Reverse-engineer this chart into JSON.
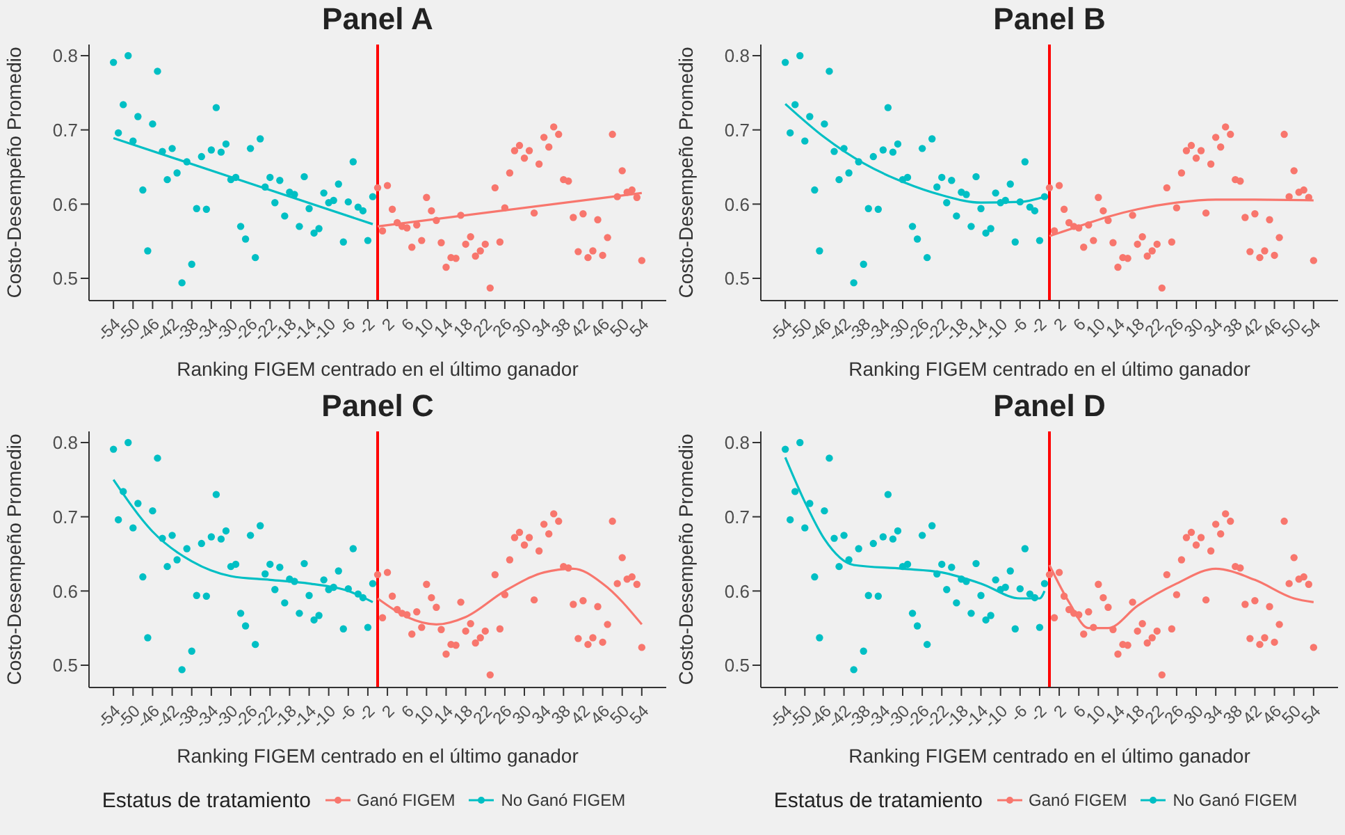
{
  "chart_data": [
    {
      "type": "scatter",
      "title": "Panel A",
      "xlabel": "Ranking FIGEM centrado en el último ganador",
      "ylabel": "Costo-Desempeño Promedio",
      "xlim": [
        -59,
        59
      ],
      "ylim": [
        0.47,
        0.815
      ],
      "xticks": [
        -54,
        -50,
        -46,
        -42,
        -38,
        -34,
        -30,
        -26,
        -22,
        -18,
        -14,
        -10,
        -6,
        -2,
        2,
        6,
        10,
        14,
        18,
        22,
        26,
        30,
        34,
        38,
        42,
        46,
        50,
        54
      ],
      "yticks": [
        0.5,
        0.6,
        0.7,
        0.8
      ],
      "grid": false,
      "legend": false,
      "marker": "circle",
      "ref_lines": [
        {
          "axis": "x",
          "value": 0,
          "color": "#ff0000"
        }
      ],
      "series": [
        {
          "color": "#f8766d",
          "x": [
            0,
            1,
            2,
            3,
            4,
            5,
            6,
            7,
            8,
            9,
            10,
            11,
            12,
            13,
            14,
            15,
            16,
            17,
            18,
            19,
            20,
            21,
            22,
            23,
            24,
            25,
            26,
            27,
            28,
            29,
            30,
            31,
            32,
            33,
            34,
            35,
            36,
            37,
            38,
            39,
            40,
            41,
            42,
            43,
            44,
            45,
            46,
            47,
            48,
            49,
            50,
            51,
            52,
            53,
            54
          ],
          "values": [
            0.622,
            0.564,
            0.625,
            0.593,
            0.575,
            0.57,
            0.568,
            0.542,
            0.572,
            0.551,
            0.609,
            0.591,
            0.578,
            0.548,
            0.515,
            0.528,
            0.527,
            0.585,
            0.546,
            0.556,
            0.53,
            0.537,
            0.546,
            0.487,
            0.622,
            0.549,
            0.595,
            0.642,
            0.672,
            0.679,
            0.662,
            0.672,
            0.588,
            0.654,
            0.69,
            0.677,
            0.704,
            0.694,
            0.633,
            0.631,
            0.582,
            0.536,
            0.587,
            0.528,
            0.537,
            0.579,
            0.531,
            0.555,
            0.694,
            0.61,
            0.645,
            0.616,
            0.619,
            0.609,
            0.524
          ]
        },
        {
          "color": "#00bfc4",
          "x": [
            -54,
            -53,
            -52,
            -51,
            -50,
            -49,
            -48,
            -47,
            -46,
            -45,
            -44,
            -43,
            -42,
            -41,
            -40,
            -39,
            -38,
            -37,
            -36,
            -35,
            -34,
            -33,
            -32,
            -31,
            -30,
            -29,
            -28,
            -27,
            -26,
            -25,
            -24,
            -23,
            -22,
            -21,
            -20,
            -19,
            -18,
            -17,
            -16,
            -15,
            -14,
            -13,
            -12,
            -11,
            -10,
            -9,
            -8,
            -7,
            -6,
            -5,
            -4,
            -3,
            -2,
            -1
          ],
          "values": [
            0.791,
            0.696,
            0.734,
            0.8,
            0.685,
            0.718,
            0.619,
            0.537,
            0.708,
            0.779,
            0.671,
            0.633,
            0.675,
            0.642,
            0.494,
            0.657,
            0.519,
            0.594,
            0.664,
            0.593,
            0.673,
            0.73,
            0.67,
            0.681,
            0.633,
            0.636,
            0.57,
            0.553,
            0.675,
            0.528,
            0.688,
            0.623,
            0.636,
            0.602,
            0.632,
            0.584,
            0.616,
            0.613,
            0.57,
            0.637,
            0.594,
            0.561,
            0.567,
            0.615,
            0.602,
            0.605,
            0.627,
            0.549,
            0.603,
            0.657,
            0.596,
            0.591,
            0.551,
            0.61
          ]
        },
        {
          "type": "line",
          "marker": "none",
          "color": "#f8766d",
          "x": [
            0,
            54
          ],
          "values": [
            0.57,
            0.615
          ]
        },
        {
          "type": "line",
          "marker": "none",
          "color": "#00bfc4",
          "x": [
            -54,
            -1
          ],
          "values": [
            0.689,
            0.573
          ]
        }
      ]
    },
    {
      "type": "scatter",
      "title": "Panel B",
      "xlabel": "Ranking FIGEM centrado en el último ganador",
      "ylabel": "Costo-Desempeño Promedio",
      "xlim": [
        -59,
        59
      ],
      "ylim": [
        0.47,
        0.815
      ],
      "xticks": [
        -54,
        -50,
        -46,
        -42,
        -38,
        -34,
        -30,
        -26,
        -22,
        -18,
        -14,
        -10,
        -6,
        -2,
        2,
        6,
        10,
        14,
        18,
        22,
        26,
        30,
        34,
        38,
        42,
        46,
        50,
        54
      ],
      "yticks": [
        0.5,
        0.6,
        0.7,
        0.8
      ],
      "grid": false,
      "legend": false,
      "marker": "circle",
      "ref_lines": [
        {
          "axis": "x",
          "value": 0,
          "color": "#ff0000"
        }
      ],
      "series": [
        {
          "color": "#f8766d",
          "x": [
            0,
            1,
            2,
            3,
            4,
            5,
            6,
            7,
            8,
            9,
            10,
            11,
            12,
            13,
            14,
            15,
            16,
            17,
            18,
            19,
            20,
            21,
            22,
            23,
            24,
            25,
            26,
            27,
            28,
            29,
            30,
            31,
            32,
            33,
            34,
            35,
            36,
            37,
            38,
            39,
            40,
            41,
            42,
            43,
            44,
            45,
            46,
            47,
            48,
            49,
            50,
            51,
            52,
            53,
            54
          ],
          "values": [
            0.622,
            0.564,
            0.625,
            0.593,
            0.575,
            0.57,
            0.568,
            0.542,
            0.572,
            0.551,
            0.609,
            0.591,
            0.578,
            0.548,
            0.515,
            0.528,
            0.527,
            0.585,
            0.546,
            0.556,
            0.53,
            0.537,
            0.546,
            0.487,
            0.622,
            0.549,
            0.595,
            0.642,
            0.672,
            0.679,
            0.662,
            0.672,
            0.588,
            0.654,
            0.69,
            0.677,
            0.704,
            0.694,
            0.633,
            0.631,
            0.582,
            0.536,
            0.587,
            0.528,
            0.537,
            0.579,
            0.531,
            0.555,
            0.694,
            0.61,
            0.645,
            0.616,
            0.619,
            0.609,
            0.524
          ]
        },
        {
          "color": "#00bfc4",
          "x": [
            -54,
            -53,
            -52,
            -51,
            -50,
            -49,
            -48,
            -47,
            -46,
            -45,
            -44,
            -43,
            -42,
            -41,
            -40,
            -39,
            -38,
            -37,
            -36,
            -35,
            -34,
            -33,
            -32,
            -31,
            -30,
            -29,
            -28,
            -27,
            -26,
            -25,
            -24,
            -23,
            -22,
            -21,
            -20,
            -19,
            -18,
            -17,
            -16,
            -15,
            -14,
            -13,
            -12,
            -11,
            -10,
            -9,
            -8,
            -7,
            -6,
            -5,
            -4,
            -3,
            -2,
            -1
          ],
          "values": [
            0.791,
            0.696,
            0.734,
            0.8,
            0.685,
            0.718,
            0.619,
            0.537,
            0.708,
            0.779,
            0.671,
            0.633,
            0.675,
            0.642,
            0.494,
            0.657,
            0.519,
            0.594,
            0.664,
            0.593,
            0.673,
            0.73,
            0.67,
            0.681,
            0.633,
            0.636,
            0.57,
            0.553,
            0.675,
            0.528,
            0.688,
            0.623,
            0.636,
            0.602,
            0.632,
            0.584,
            0.616,
            0.613,
            0.57,
            0.637,
            0.594,
            0.561,
            0.567,
            0.615,
            0.602,
            0.605,
            0.627,
            0.549,
            0.603,
            0.657,
            0.596,
            0.591,
            0.551,
            0.61
          ]
        },
        {
          "type": "line",
          "marker": "none",
          "color": "#f8766d",
          "x": [
            0,
            6,
            12,
            18,
            26,
            34,
            42,
            54
          ],
          "values": [
            0.557,
            0.57,
            0.583,
            0.593,
            0.602,
            0.606,
            0.606,
            0.605
          ]
        },
        {
          "type": "line",
          "marker": "none",
          "color": "#00bfc4",
          "x": [
            -54,
            -46,
            -38,
            -30,
            -22,
            -14,
            -6,
            -1
          ],
          "values": [
            0.735,
            0.69,
            0.655,
            0.63,
            0.612,
            0.602,
            0.603,
            0.61
          ]
        }
      ]
    },
    {
      "type": "scatter",
      "title": "Panel C",
      "xlabel": "Ranking FIGEM centrado en el último ganador",
      "ylabel": "Costo-Desempeño Promedio",
      "legend_title": "Estatus de tratamiento",
      "xlim": [
        -59,
        59
      ],
      "ylim": [
        0.47,
        0.815
      ],
      "xticks": [
        -54,
        -50,
        -46,
        -42,
        -38,
        -34,
        -30,
        -26,
        -22,
        -18,
        -14,
        -10,
        -6,
        -2,
        2,
        6,
        10,
        14,
        18,
        22,
        26,
        30,
        34,
        38,
        42,
        46,
        50,
        54
      ],
      "yticks": [
        0.5,
        0.6,
        0.7,
        0.8
      ],
      "grid": false,
      "legend": "bottom",
      "marker": "circle",
      "ref_lines": [
        {
          "axis": "x",
          "value": 0,
          "color": "#ff0000"
        }
      ],
      "series": [
        {
          "name": "Ganó FIGEM",
          "color": "#f8766d",
          "x": [
            0,
            1,
            2,
            3,
            4,
            5,
            6,
            7,
            8,
            9,
            10,
            11,
            12,
            13,
            14,
            15,
            16,
            17,
            18,
            19,
            20,
            21,
            22,
            23,
            24,
            25,
            26,
            27,
            28,
            29,
            30,
            31,
            32,
            33,
            34,
            35,
            36,
            37,
            38,
            39,
            40,
            41,
            42,
            43,
            44,
            45,
            46,
            47,
            48,
            49,
            50,
            51,
            52,
            53,
            54
          ],
          "values": [
            0.622,
            0.564,
            0.625,
            0.593,
            0.575,
            0.57,
            0.568,
            0.542,
            0.572,
            0.551,
            0.609,
            0.591,
            0.578,
            0.548,
            0.515,
            0.528,
            0.527,
            0.585,
            0.546,
            0.556,
            0.53,
            0.537,
            0.546,
            0.487,
            0.622,
            0.549,
            0.595,
            0.642,
            0.672,
            0.679,
            0.662,
            0.672,
            0.588,
            0.654,
            0.69,
            0.677,
            0.704,
            0.694,
            0.633,
            0.631,
            0.582,
            0.536,
            0.587,
            0.528,
            0.537,
            0.579,
            0.531,
            0.555,
            0.694,
            0.61,
            0.645,
            0.616,
            0.619,
            0.609,
            0.524
          ]
        },
        {
          "name": "No Ganó FIGEM",
          "color": "#00bfc4",
          "x": [
            -54,
            -53,
            -52,
            -51,
            -50,
            -49,
            -48,
            -47,
            -46,
            -45,
            -44,
            -43,
            -42,
            -41,
            -40,
            -39,
            -38,
            -37,
            -36,
            -35,
            -34,
            -33,
            -32,
            -31,
            -30,
            -29,
            -28,
            -27,
            -26,
            -25,
            -24,
            -23,
            -22,
            -21,
            -20,
            -19,
            -18,
            -17,
            -16,
            -15,
            -14,
            -13,
            -12,
            -11,
            -10,
            -9,
            -8,
            -7,
            -6,
            -5,
            -4,
            -3,
            -2,
            -1
          ],
          "values": [
            0.791,
            0.696,
            0.734,
            0.8,
            0.685,
            0.718,
            0.619,
            0.537,
            0.708,
            0.779,
            0.671,
            0.633,
            0.675,
            0.642,
            0.494,
            0.657,
            0.519,
            0.594,
            0.664,
            0.593,
            0.673,
            0.73,
            0.67,
            0.681,
            0.633,
            0.636,
            0.57,
            0.553,
            0.675,
            0.528,
            0.688,
            0.623,
            0.636,
            0.602,
            0.632,
            0.584,
            0.616,
            0.613,
            0.57,
            0.637,
            0.594,
            0.561,
            0.567,
            0.615,
            0.602,
            0.605,
            0.627,
            0.549,
            0.603,
            0.657,
            0.596,
            0.591,
            0.551,
            0.61
          ]
        },
        {
          "type": "line",
          "marker": "none",
          "color": "#f8766d",
          "x": [
            0,
            6,
            12,
            18,
            26,
            34,
            40,
            46,
            54
          ],
          "values": [
            0.59,
            0.565,
            0.555,
            0.565,
            0.6,
            0.625,
            0.63,
            0.61,
            0.555
          ]
        },
        {
          "type": "line",
          "marker": "none",
          "color": "#00bfc4",
          "x": [
            -54,
            -46,
            -38,
            -30,
            -22,
            -14,
            -6,
            -1
          ],
          "values": [
            0.75,
            0.68,
            0.64,
            0.62,
            0.615,
            0.61,
            0.6,
            0.585
          ]
        }
      ]
    },
    {
      "type": "scatter",
      "title": "Panel D",
      "xlabel": "Ranking FIGEM centrado en el último ganador",
      "ylabel": "Costo-Desempeño Promedio",
      "legend_title": "Estatus de tratamiento",
      "xlim": [
        -59,
        59
      ],
      "ylim": [
        0.47,
        0.815
      ],
      "xticks": [
        -54,
        -50,
        -46,
        -42,
        -38,
        -34,
        -30,
        -26,
        -22,
        -18,
        -14,
        -10,
        -6,
        -2,
        2,
        6,
        10,
        14,
        18,
        22,
        26,
        30,
        34,
        38,
        42,
        46,
        50,
        54
      ],
      "yticks": [
        0.5,
        0.6,
        0.7,
        0.8
      ],
      "grid": false,
      "legend": "bottom",
      "marker": "circle",
      "ref_lines": [
        {
          "axis": "x",
          "value": 0,
          "color": "#ff0000"
        }
      ],
      "series": [
        {
          "name": "Ganó FIGEM",
          "color": "#f8766d",
          "x": [
            0,
            1,
            2,
            3,
            4,
            5,
            6,
            7,
            8,
            9,
            10,
            11,
            12,
            13,
            14,
            15,
            16,
            17,
            18,
            19,
            20,
            21,
            22,
            23,
            24,
            25,
            26,
            27,
            28,
            29,
            30,
            31,
            32,
            33,
            34,
            35,
            36,
            37,
            38,
            39,
            40,
            41,
            42,
            43,
            44,
            45,
            46,
            47,
            48,
            49,
            50,
            51,
            52,
            53,
            54
          ],
          "values": [
            0.622,
            0.564,
            0.625,
            0.593,
            0.575,
            0.57,
            0.568,
            0.542,
            0.572,
            0.551,
            0.609,
            0.591,
            0.578,
            0.548,
            0.515,
            0.528,
            0.527,
            0.585,
            0.546,
            0.556,
            0.53,
            0.537,
            0.546,
            0.487,
            0.622,
            0.549,
            0.595,
            0.642,
            0.672,
            0.679,
            0.662,
            0.672,
            0.588,
            0.654,
            0.69,
            0.677,
            0.704,
            0.694,
            0.633,
            0.631,
            0.582,
            0.536,
            0.587,
            0.528,
            0.537,
            0.579,
            0.531,
            0.555,
            0.694,
            0.61,
            0.645,
            0.616,
            0.619,
            0.609,
            0.524
          ]
        },
        {
          "name": "No Ganó FIGEM",
          "color": "#00bfc4",
          "x": [
            -54,
            -53,
            -52,
            -51,
            -50,
            -49,
            -48,
            -47,
            -46,
            -45,
            -44,
            -43,
            -42,
            -41,
            -40,
            -39,
            -38,
            -37,
            -36,
            -35,
            -34,
            -33,
            -32,
            -31,
            -30,
            -29,
            -28,
            -27,
            -26,
            -25,
            -24,
            -23,
            -22,
            -21,
            -20,
            -19,
            -18,
            -17,
            -16,
            -15,
            -14,
            -13,
            -12,
            -11,
            -10,
            -9,
            -8,
            -7,
            -6,
            -5,
            -4,
            -3,
            -2,
            -1
          ],
          "values": [
            0.791,
            0.696,
            0.734,
            0.8,
            0.685,
            0.718,
            0.619,
            0.537,
            0.708,
            0.779,
            0.671,
            0.633,
            0.675,
            0.642,
            0.494,
            0.657,
            0.519,
            0.594,
            0.664,
            0.593,
            0.673,
            0.73,
            0.67,
            0.681,
            0.633,
            0.636,
            0.57,
            0.553,
            0.675,
            0.528,
            0.688,
            0.623,
            0.636,
            0.602,
            0.632,
            0.584,
            0.616,
            0.613,
            0.57,
            0.637,
            0.594,
            0.561,
            0.567,
            0.615,
            0.602,
            0.605,
            0.627,
            0.549,
            0.603,
            0.657,
            0.596,
            0.591,
            0.551,
            0.61
          ]
        },
        {
          "type": "line",
          "marker": "none",
          "color": "#f8766d",
          "x": [
            0,
            4,
            8,
            12,
            18,
            26,
            34,
            42,
            50,
            54
          ],
          "values": [
            0.635,
            0.585,
            0.55,
            0.55,
            0.58,
            0.61,
            0.63,
            0.615,
            0.59,
            0.585
          ]
        },
        {
          "type": "line",
          "marker": "none",
          "color": "#00bfc4",
          "x": [
            -54,
            -50,
            -46,
            -40,
            -30,
            -22,
            -14,
            -6,
            -2,
            -1
          ],
          "values": [
            0.78,
            0.72,
            0.67,
            0.635,
            0.63,
            0.625,
            0.61,
            0.59,
            0.59,
            0.6
          ]
        }
      ]
    }
  ]
}
